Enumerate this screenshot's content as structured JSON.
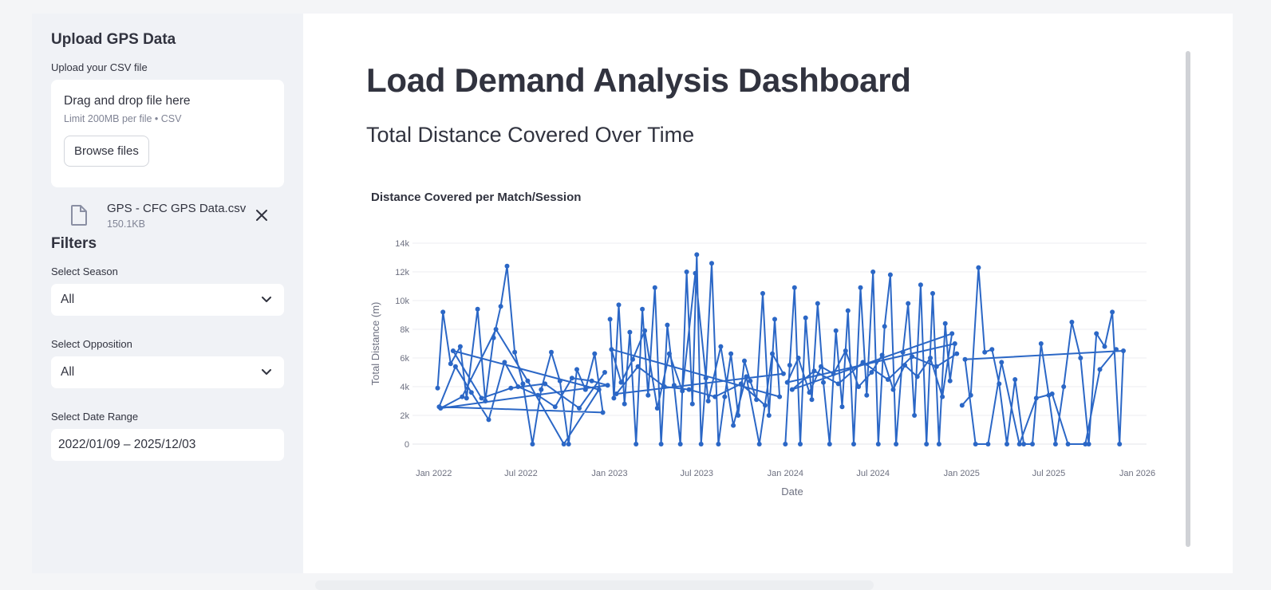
{
  "sidebar": {
    "upload_title": "Upload GPS Data",
    "upload_label": "Upload your CSV file",
    "dropzone_title": "Drag and drop file here",
    "dropzone_limit": "Limit 200MB per file • CSV",
    "browse_label": "Browse files",
    "file_name": "GPS - CFC GPS Data.csv",
    "file_size": "150.1KB",
    "filters_title": "Filters",
    "season_label": "Select Season",
    "season_value": "All",
    "opposition_label": "Select Opposition",
    "opposition_value": "All",
    "date_label": "Select Date Range",
    "date_value": "2022/01/09 – 2025/12/03"
  },
  "main": {
    "title": "Load Demand Analysis Dashboard",
    "subtitle": "Total Distance Covered Over Time"
  },
  "chart_data": {
    "type": "line",
    "title": "Distance Covered per Match/Session",
    "xlabel": "Date",
    "ylabel": "Total Distance (m)",
    "ylim": [
      0,
      14000
    ],
    "xlim": [
      "2021-12-01",
      "2026-01-20"
    ],
    "x_ticks": [
      "Jan 2022",
      "Jul 2022",
      "Jan 2023",
      "Jul 2023",
      "Jan 2024",
      "Jul 2024",
      "Jan 2025",
      "Jul 2025",
      "Jan 2026"
    ],
    "y_ticks": [
      "0",
      "2k",
      "4k",
      "6k",
      "8k",
      "10k",
      "12k",
      "14k"
    ],
    "grid": true,
    "color": "#2b67c6",
    "series": [
      {
        "x": [
          "2022-01-09",
          "2022-01-20",
          "2022-02-05",
          "2022-02-25",
          "2022-03-10",
          "2022-04-02",
          "2022-04-18",
          "2022-05-05",
          "2022-05-20",
          "2022-06-02",
          "2022-06-18",
          "2022-07-05",
          "2022-07-25",
          "2022-08-12",
          "2022-09-02",
          "2022-09-20",
          "2022-10-08",
          "2022-10-25",
          "2022-11-12",
          "2022-12-01",
          "2022-12-18",
          "2022-01-12",
          "2022-02-15",
          "2022-03-20",
          "2022-04-25",
          "2022-05-28",
          "2022-06-25",
          "2022-08-05",
          "2022-09-10",
          "2022-10-15",
          "2022-11-25",
          "2022-12-28",
          "2022-01-15",
          "2022-03-01",
          "2022-05-10",
          "2022-07-15",
          "2022-09-28",
          "2022-12-10",
          "2022-02-10",
          "2022-04-10",
          "2022-06-10",
          "2022-08-20",
          "2022-10-30",
          "2022-12-22"
        ],
        "y": [
          3900,
          9200,
          5600,
          6800,
          3200,
          9400,
          3000,
          7400,
          9600,
          12400,
          6400,
          4200,
          0,
          3800,
          6400,
          4400,
          0,
          5200,
          3800,
          6300,
          2200,
          2600,
          5400,
          3600,
          1700,
          5700,
          4000,
          3400,
          2600,
          4600,
          4400,
          4100,
          2500,
          3300,
          8000,
          4400,
          0,
          3800,
          6500,
          3200,
          3900,
          4200,
          2500,
          5000
        ]
      },
      {
        "x": [
          "2023-01-02",
          "2023-01-10",
          "2023-01-20",
          "2023-02-01",
          "2023-02-12",
          "2023-02-25",
          "2023-03-10",
          "2023-03-22",
          "2023-04-05",
          "2023-04-18",
          "2023-05-01",
          "2023-05-15",
          "2023-05-28",
          "2023-06-10",
          "2023-06-22",
          "2023-07-01",
          "2023-07-10",
          "2023-07-20",
          "2023-08-01",
          "2023-08-15",
          "2023-08-28",
          "2023-09-10",
          "2023-09-25",
          "2023-10-08",
          "2023-10-20",
          "2023-11-02",
          "2023-11-15",
          "2023-11-28",
          "2023-12-10",
          "2023-12-20",
          "2023-01-05",
          "2023-01-25",
          "2023-02-18",
          "2023-03-15",
          "2023-04-10",
          "2023-05-05",
          "2023-06-01",
          "2023-06-28",
          "2023-07-25",
          "2023-08-20",
          "2023-09-15",
          "2023-10-12",
          "2023-11-08",
          "2023-12-05",
          "2023-12-28",
          "2023-01-15",
          "2023-03-01",
          "2023-04-25",
          "2023-06-15",
          "2023-08-08",
          "2023-10-01",
          "2023-11-20"
        ],
        "y": [
          8700,
          3200,
          9700,
          2800,
          7800,
          0,
          9400,
          3400,
          10900,
          0,
          8300,
          4100,
          0,
          12000,
          2800,
          13200,
          0,
          4600,
          12600,
          0,
          3300,
          6300,
          2000,
          5800,
          4400,
          3100,
          10500,
          2000,
          8700,
          3300,
          6600,
          4300,
          5900,
          7900,
          2500,
          6300,
          3700,
          11900,
          3000,
          6800,
          1300,
          4700,
          0,
          6300,
          4900,
          3500,
          5400,
          4000,
          3800,
          3300,
          4200,
          2700
        ]
      },
      {
        "x": [
          "2024-01-01",
          "2024-01-10",
          "2024-01-20",
          "2024-02-01",
          "2024-02-12",
          "2024-02-25",
          "2024-03-08",
          "2024-03-20",
          "2024-04-02",
          "2024-04-15",
          "2024-04-28",
          "2024-05-10",
          "2024-05-22",
          "2024-06-05",
          "2024-06-18",
          "2024-07-01",
          "2024-07-12",
          "2024-07-25",
          "2024-08-06",
          "2024-08-18",
          "2024-09-01",
          "2024-09-12",
          "2024-09-25",
          "2024-10-08",
          "2024-10-20",
          "2024-11-02",
          "2024-11-15",
          "2024-11-28",
          "2024-12-08",
          "2024-12-18",
          "2024-01-05",
          "2024-01-28",
          "2024-02-20",
          "2024-03-15",
          "2024-04-10",
          "2024-05-05",
          "2024-06-01",
          "2024-06-28",
          "2024-07-20",
          "2024-08-12",
          "2024-09-05",
          "2024-10-01",
          "2024-10-28",
          "2024-11-22",
          "2024-12-12",
          "2024-01-15",
          "2024-03-01",
          "2024-04-20",
          "2024-06-10",
          "2024-08-01",
          "2024-09-20",
          "2024-11-10",
          "2024-12-22"
        ],
        "y": [
          0,
          5500,
          10900,
          0,
          8800,
          3100,
          9800,
          4300,
          0,
          7900,
          2600,
          9300,
          0,
          10900,
          3400,
          12000,
          0,
          8200,
          11800,
          0,
          6400,
          9800,
          2000,
          11100,
          0,
          10500,
          0,
          8400,
          4400,
          7000,
          4300,
          6000,
          3600,
          5400,
          4900,
          6500,
          4000,
          5000,
          6200,
          3800,
          5500,
          4700,
          6000,
          3300,
          7700,
          3800,
          5100,
          4200,
          5700,
          4500,
          6100,
          5400,
          6300
        ]
      },
      {
        "x": [
          "2025-01-02",
          "2025-01-20",
          "2025-02-05",
          "2025-02-18",
          "2025-03-05",
          "2025-03-20",
          "2025-04-05",
          "2025-04-22",
          "2025-05-10",
          "2025-05-28",
          "2025-06-15",
          "2025-07-01",
          "2025-07-15",
          "2025-08-01",
          "2025-08-18",
          "2025-09-05",
          "2025-09-22",
          "2025-10-08",
          "2025-10-25",
          "2025-11-10",
          "2025-11-25",
          "2025-12-03",
          "2025-01-08",
          "2025-01-30",
          "2025-02-25",
          "2025-03-25",
          "2025-05-01",
          "2025-06-05",
          "2025-07-08",
          "2025-08-10",
          "2025-09-15",
          "2025-10-15",
          "2025-11-18"
        ],
        "y": [
          2700,
          3400,
          12300,
          6400,
          6600,
          4200,
          0,
          4500,
          0,
          0,
          7000,
          3400,
          0,
          4000,
          8500,
          6000,
          0,
          7700,
          6800,
          9200,
          0,
          6500,
          5900,
          0,
          0,
          5700,
          0,
          3200,
          3500,
          0,
          0,
          5200,
          6600
        ]
      }
    ]
  }
}
